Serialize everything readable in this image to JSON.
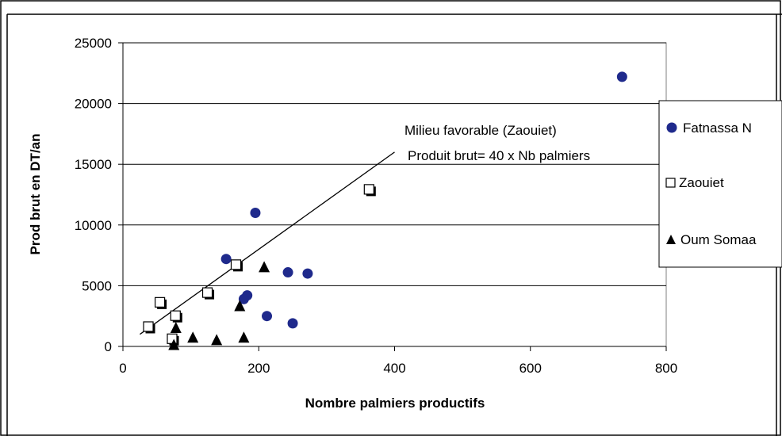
{
  "chart_data": {
    "type": "scatter",
    "title": "",
    "xlabel": "Nombre palmiers productifs",
    "ylabel": "Prod brut en DT/an",
    "xlim": [
      0,
      800
    ],
    "ylim": [
      0,
      25000
    ],
    "xticks": [
      0,
      200,
      400,
      600,
      800
    ],
    "yticks": [
      0,
      5000,
      10000,
      15000,
      20000,
      25000
    ],
    "grid": "horizontal",
    "legend_position": "right",
    "series": [
      {
        "name": "Fatnassa N",
        "marker": "circle",
        "color": "#1f2a8c",
        "points": [
          {
            "x": 735,
            "y": 22200
          },
          {
            "x": 195,
            "y": 11000
          },
          {
            "x": 152,
            "y": 7200
          },
          {
            "x": 243,
            "y": 6100
          },
          {
            "x": 272,
            "y": 6000
          },
          {
            "x": 183,
            "y": 4200
          },
          {
            "x": 178,
            "y": 3900
          },
          {
            "x": 212,
            "y": 2500
          },
          {
            "x": 250,
            "y": 1900
          }
        ]
      },
      {
        "name": "Zaouiet",
        "marker": "square-open",
        "color": "#000000",
        "points": [
          {
            "x": 363,
            "y": 12900
          },
          {
            "x": 167,
            "y": 6700
          },
          {
            "x": 125,
            "y": 4400
          },
          {
            "x": 55,
            "y": 3600
          },
          {
            "x": 78,
            "y": 2500
          },
          {
            "x": 38,
            "y": 1600
          },
          {
            "x": 73,
            "y": 600
          }
        ]
      },
      {
        "name": "Oum Somaa",
        "marker": "triangle",
        "color": "#000000",
        "points": [
          {
            "x": 208,
            "y": 6500
          },
          {
            "x": 172,
            "y": 3300
          },
          {
            "x": 78,
            "y": 1500
          },
          {
            "x": 103,
            "y": 700
          },
          {
            "x": 138,
            "y": 500
          },
          {
            "x": 178,
            "y": 700
          },
          {
            "x": 75,
            "y": 100
          }
        ]
      }
    ],
    "trendline": {
      "from": {
        "x": 25,
        "y": 1000
      },
      "to": {
        "x": 400,
        "y": 16000
      },
      "color": "#000000"
    },
    "annotations": [
      "Milieu favorable (Zaouiet)",
      "Produit brut= 40 x Nb palmiers"
    ]
  }
}
